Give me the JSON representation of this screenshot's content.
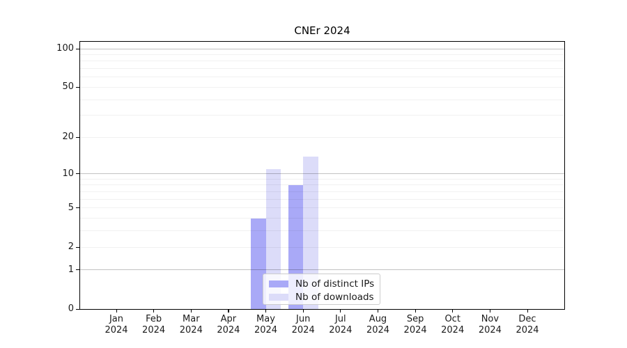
{
  "chart_data": {
    "type": "bar",
    "title": "CNEr 2024",
    "xlabel": "",
    "ylabel": "",
    "yscale": "log1p",
    "ylim": [
      0,
      100
    ],
    "yticks": [
      0,
      1,
      2,
      5,
      10,
      20,
      50,
      100
    ],
    "major_decade_gridlines": [
      1,
      10,
      100
    ],
    "grid": true,
    "categories": [
      {
        "month": "Jan",
        "year": "2024"
      },
      {
        "month": "Feb",
        "year": "2024"
      },
      {
        "month": "Mar",
        "year": "2024"
      },
      {
        "month": "Apr",
        "year": "2024"
      },
      {
        "month": "May",
        "year": "2024"
      },
      {
        "month": "Jun",
        "year": "2024"
      },
      {
        "month": "Jul",
        "year": "2024"
      },
      {
        "month": "Aug",
        "year": "2024"
      },
      {
        "month": "Sep",
        "year": "2024"
      },
      {
        "month": "Oct",
        "year": "2024"
      },
      {
        "month": "Nov",
        "year": "2024"
      },
      {
        "month": "Dec",
        "year": "2024"
      }
    ],
    "series": [
      {
        "name": "Nb of distinct IPs",
        "color": "#a9a9f7",
        "values": [
          0,
          0,
          0,
          0,
          4,
          8,
          0,
          0,
          0,
          0,
          0,
          0
        ]
      },
      {
        "name": "Nb of downloads",
        "color": "#dcdcf9",
        "values": [
          0,
          0,
          0,
          0,
          11,
          14,
          0,
          0,
          0,
          0,
          0,
          0
        ]
      }
    ],
    "legend": {
      "position": "lower center"
    }
  }
}
